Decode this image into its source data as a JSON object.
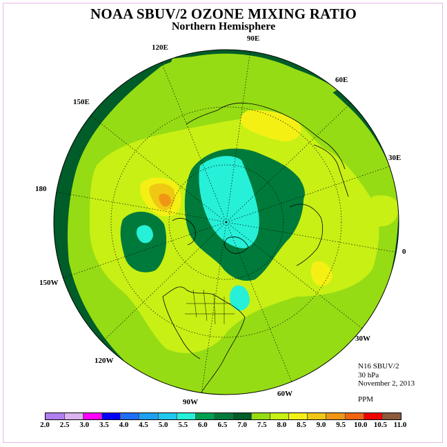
{
  "title": "NOAA SBUV/2 OZONE MIXING RATIO",
  "subtitle": "Northern Hemisphere",
  "longitude_labels": [
    {
      "id": "lon-90e",
      "text": "90E"
    },
    {
      "id": "lon-60e",
      "text": "60E"
    },
    {
      "id": "lon-30e",
      "text": "30E"
    },
    {
      "id": "lon-0",
      "text": "0"
    },
    {
      "id": "lon-30w",
      "text": "30W"
    },
    {
      "id": "lon-60w",
      "text": "60W"
    },
    {
      "id": "lon-90w",
      "text": "90W"
    },
    {
      "id": "lon-120w",
      "text": "120W"
    },
    {
      "id": "lon-150w",
      "text": "150W"
    },
    {
      "id": "lon-180",
      "text": "180"
    },
    {
      "id": "lon-150e",
      "text": "150E"
    },
    {
      "id": "lon-120e",
      "text": "120E"
    }
  ],
  "info": {
    "instrument": "N16 SBUV/2",
    "level": "30 hPa",
    "date": "November 2, 2013",
    "units": "PPM"
  },
  "colorbar": {
    "ticks": [
      "2.0",
      "2.5",
      "3.0",
      "3.5",
      "4.0",
      "4.5",
      "5.0",
      "5.5",
      "6.0",
      "6.5",
      "7.0",
      "7.5",
      "8.0",
      "8.5",
      "9.0",
      "9.5",
      "10.0",
      "10.5",
      "11.0"
    ],
    "colors": [
      "#b07ff0",
      "#dcb2f0",
      "#ff00ff",
      "#0000ff",
      "#1e6ff5",
      "#1fa0f0",
      "#20c8f0",
      "#26f0d8",
      "#00a050",
      "#007a3a",
      "#005c28",
      "#96dc14",
      "#c8f014",
      "#f5f014",
      "#f0c814",
      "#f09614",
      "#f06414",
      "#f00000",
      "#8c5a3c"
    ]
  },
  "map_colors": {
    "background": "#005c28",
    "light_green": "#96dc14",
    "yellow_green": "#c8f014",
    "yellow": "#f5f014",
    "gold": "#f0c814",
    "orange": "#f09614",
    "mid_green": "#007a3a",
    "dark_green": "#005c28",
    "cyan": "#26f0d8"
  }
}
